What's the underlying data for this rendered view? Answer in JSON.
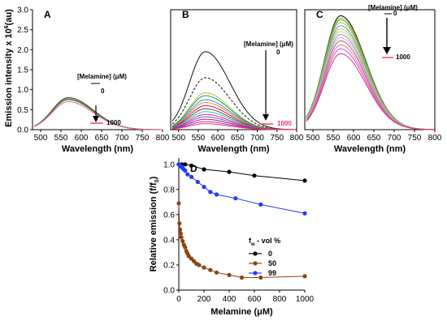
{
  "figure": {
    "shared_ylabel": "Emission intensity x 10",
    "shared_ylabel_sup": "6",
    "shared_ylabel_unit": "(au)"
  },
  "chart_data": [
    {
      "id": "A",
      "type": "line",
      "panel_label": "A",
      "xlabel": "Wavelength (nm)",
      "xlim": [
        480,
        800
      ],
      "ylim": [
        0,
        3.0
      ],
      "xticks": [
        "500",
        "550",
        "600",
        "650",
        "700",
        "750",
        "800"
      ],
      "yticks": [
        "0.0",
        "0.5",
        "1.0",
        "1.5",
        "2.0",
        "2.5",
        "3.0"
      ],
      "annotation": {
        "title": "[Melamine] (μM)",
        "start": "0",
        "end": "1000"
      },
      "series": [
        {
          "color": "#333333",
          "peak": 0.8,
          "dashed": false
        },
        {
          "color": "#7a9a2e",
          "peak": 0.77,
          "dashed": false
        },
        {
          "color": "#2e7a3a",
          "peak": 0.75,
          "dashed": false
        },
        {
          "color": "#ff5fa0",
          "peak": 0.7,
          "dashed": false
        }
      ]
    },
    {
      "id": "B",
      "type": "line",
      "panel_label": "B",
      "xlabel": "Wavelength (nm)",
      "xlim": [
        480,
        800
      ],
      "ylim": [
        0,
        3.0
      ],
      "xticks": [
        "500",
        "550",
        "600",
        "650",
        "700",
        "750",
        "800"
      ],
      "annotation": {
        "title": "[Melamine] (μM)",
        "start": "0",
        "end": "1000"
      },
      "series": [
        {
          "color": "#111111",
          "peak": 1.95,
          "dashed": false
        },
        {
          "color": "#111111",
          "peak": 1.3,
          "dashed": true
        },
        {
          "color": "#9acd32",
          "peak": 0.92,
          "dashed": false
        },
        {
          "color": "#2e8b57",
          "peak": 0.85,
          "dashed": false
        },
        {
          "color": "#1e90ff",
          "peak": 0.75,
          "dashed": false
        },
        {
          "color": "#ff8c00",
          "peak": 0.68,
          "dashed": false
        },
        {
          "color": "#c71585",
          "peak": 0.6,
          "dashed": false
        },
        {
          "color": "#8b4513",
          "peak": 0.52,
          "dashed": false
        },
        {
          "color": "#00ced1",
          "peak": 0.45,
          "dashed": false
        },
        {
          "color": "#ff1493",
          "peak": 0.38,
          "dashed": false
        },
        {
          "color": "#4169e1",
          "peak": 0.32,
          "dashed": false
        },
        {
          "color": "#dc143c",
          "peak": 0.26,
          "dashed": false
        },
        {
          "color": "#9932cc",
          "peak": 0.2,
          "dashed": false
        },
        {
          "color": "#ff3366",
          "peak": 0.15,
          "dashed": false
        }
      ]
    },
    {
      "id": "C",
      "type": "line",
      "panel_label": "C",
      "xlabel": "Wavelength (nm)",
      "xlim": [
        480,
        800
      ],
      "ylim": [
        0,
        3.0
      ],
      "xticks": [
        "500",
        "550",
        "600",
        "650",
        "700",
        "750",
        "800"
      ],
      "annotation": {
        "title": "[Melamine] (μM)",
        "start": "0",
        "end": "1000"
      },
      "series": [
        {
          "color": "#000000",
          "peak": 2.85,
          "dashed": false
        },
        {
          "color": "#9acd32",
          "peak": 2.8,
          "dashed": false
        },
        {
          "color": "#6b8e23",
          "peak": 2.75,
          "dashed": false
        },
        {
          "color": "#bdb76b",
          "peak": 2.68,
          "dashed": false
        },
        {
          "color": "#20b2aa",
          "peak": 2.6,
          "dashed": false
        },
        {
          "color": "#f4a460",
          "peak": 2.52,
          "dashed": false
        },
        {
          "color": "#90ee90",
          "peak": 2.45,
          "dashed": false
        },
        {
          "color": "#da70d6",
          "peak": 2.38,
          "dashed": false
        },
        {
          "color": "#87ceeb",
          "peak": 2.3,
          "dashed": false
        },
        {
          "color": "#cd5c5c",
          "peak": 2.22,
          "dashed": false
        },
        {
          "color": "#ff69b4",
          "peak": 2.12,
          "dashed": false
        },
        {
          "color": "#ba55d3",
          "peak": 2.02,
          "dashed": false
        },
        {
          "color": "#e3306c",
          "peak": 1.9,
          "dashed": false
        }
      ]
    },
    {
      "id": "D",
      "type": "line",
      "panel_label": "D",
      "xlabel": "Melamine (μM)",
      "ylabel": "Relative emission (f/f",
      "ylabel_sub": "0",
      "ylabel_end": ")",
      "xlim": [
        0,
        1000
      ],
      "ylim": [
        0,
        1.05
      ],
      "xticks": [
        "0",
        "200",
        "400",
        "600",
        "800",
        "1000"
      ],
      "yticks": [
        "0.0",
        "0.2",
        "0.4",
        "0.6",
        "0.8",
        "1.0"
      ],
      "legend": {
        "title": "f",
        "title_sub": "w",
        "title_end": " - vol %",
        "position": "right"
      },
      "series": [
        {
          "name": "0",
          "color": "#000000",
          "x": [
            0,
            25,
            50,
            100,
            200,
            400,
            600,
            1000
          ],
          "y": [
            1.0,
            1.0,
            1.0,
            0.99,
            0.96,
            0.94,
            0.91,
            0.87
          ]
        },
        {
          "name": "50",
          "color": "#8b4513",
          "x": [
            0,
            5,
            10,
            15,
            20,
            30,
            40,
            50,
            60,
            70,
            80,
            100,
            120,
            140,
            160,
            200,
            250,
            300,
            400,
            500,
            650,
            1000
          ],
          "y": [
            0.69,
            0.53,
            0.48,
            0.45,
            0.42,
            0.39,
            0.36,
            0.34,
            0.31,
            0.29,
            0.27,
            0.25,
            0.23,
            0.21,
            0.2,
            0.18,
            0.16,
            0.14,
            0.12,
            0.1,
            0.1,
            0.11
          ]
        },
        {
          "name": "99",
          "color": "#1e3cff",
          "x": [
            0,
            10,
            20,
            30,
            40,
            50,
            70,
            100,
            150,
            200,
            250,
            300,
            450,
            650,
            1000
          ],
          "y": [
            1.0,
            0.99,
            0.98,
            0.97,
            0.96,
            0.95,
            0.92,
            0.9,
            0.86,
            0.82,
            0.78,
            0.76,
            0.73,
            0.68,
            0.61
          ]
        }
      ]
    }
  ]
}
